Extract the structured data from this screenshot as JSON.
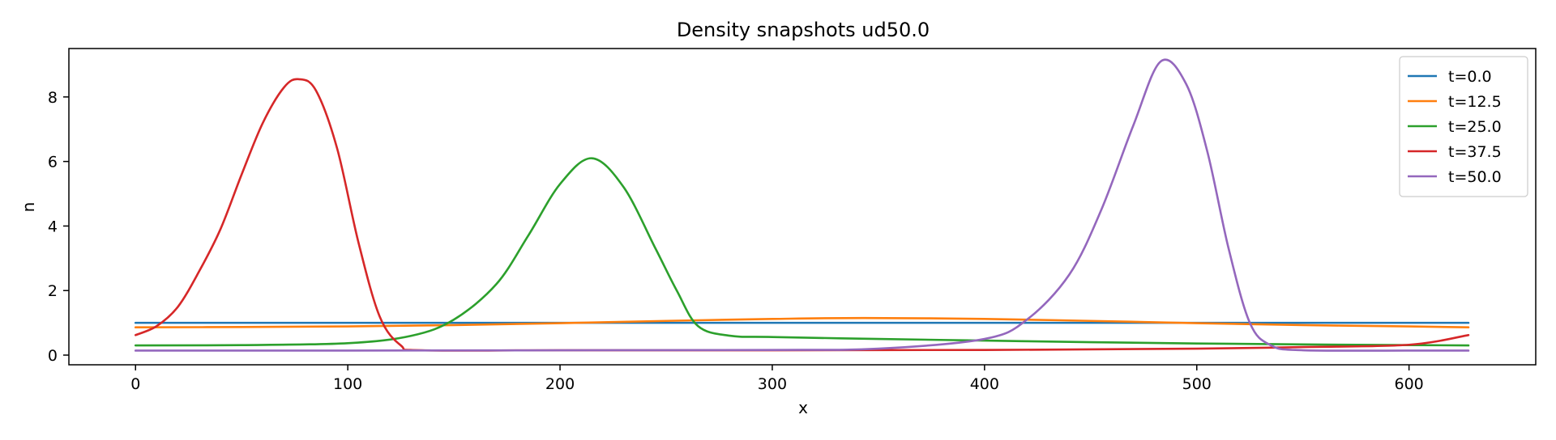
{
  "chart_data": {
    "type": "line",
    "title": "Density snapshots  ud50.0",
    "xlabel": "x",
    "ylabel": "n",
    "xlim": [
      -31.4,
      659.7
    ],
    "ylim": [
      -0.3,
      9.5
    ],
    "xticks": [
      0,
      100,
      200,
      300,
      400,
      500,
      600
    ],
    "yticks": [
      0,
      2,
      4,
      6,
      8
    ],
    "grid": false,
    "legend_position": "top-right",
    "series": [
      {
        "name": "t=0.0",
        "color": "#1f77b4",
        "x": [
          0,
          628
        ],
        "y": [
          1.0,
          1.0
        ]
      },
      {
        "name": "t=12.5",
        "color": "#ff7f0e",
        "x": [
          0,
          50,
          100,
          150,
          200,
          250,
          300,
          343,
          400,
          450,
          500,
          550,
          600,
          628
        ],
        "y": [
          0.86,
          0.87,
          0.89,
          0.93,
          0.99,
          1.06,
          1.12,
          1.15,
          1.12,
          1.06,
          0.99,
          0.93,
          0.89,
          0.86
        ]
      },
      {
        "name": "t=25.0",
        "color": "#2ca02c",
        "x": [
          0,
          50,
          100,
          130,
          150,
          170,
          185,
          200,
          215,
          230,
          245,
          255,
          265,
          280,
          300,
          350,
          400,
          450,
          500,
          550,
          600,
          628
        ],
        "y": [
          0.3,
          0.31,
          0.37,
          0.6,
          1.1,
          2.2,
          3.7,
          5.3,
          6.1,
          5.2,
          3.3,
          2.0,
          0.9,
          0.6,
          0.56,
          0.5,
          0.45,
          0.4,
          0.36,
          0.33,
          0.31,
          0.3
        ]
      },
      {
        "name": "t=37.5",
        "color": "#d62728",
        "x": [
          0,
          10,
          20,
          30,
          40,
          50,
          60,
          70,
          77,
          85,
          95,
          105,
          115,
          125,
          135,
          200,
          300,
          400,
          500,
          550,
          600,
          628
        ],
        "y": [
          0.62,
          0.9,
          1.5,
          2.6,
          3.9,
          5.6,
          7.2,
          8.3,
          8.55,
          8.2,
          6.4,
          3.5,
          1.2,
          0.3,
          0.15,
          0.15,
          0.15,
          0.16,
          0.2,
          0.25,
          0.32,
          0.62
        ]
      },
      {
        "name": "t=50.0",
        "color": "#9467bd",
        "x": [
          0,
          100,
          200,
          300,
          350,
          400,
          420,
          440,
          455,
          470,
          483,
          495,
          505,
          515,
          525,
          535,
          550,
          600,
          628
        ],
        "y": [
          0.14,
          0.14,
          0.15,
          0.16,
          0.2,
          0.5,
          1.1,
          2.5,
          4.5,
          7.1,
          9.1,
          8.4,
          6.3,
          3.3,
          1.0,
          0.3,
          0.15,
          0.14,
          0.14
        ]
      }
    ]
  }
}
